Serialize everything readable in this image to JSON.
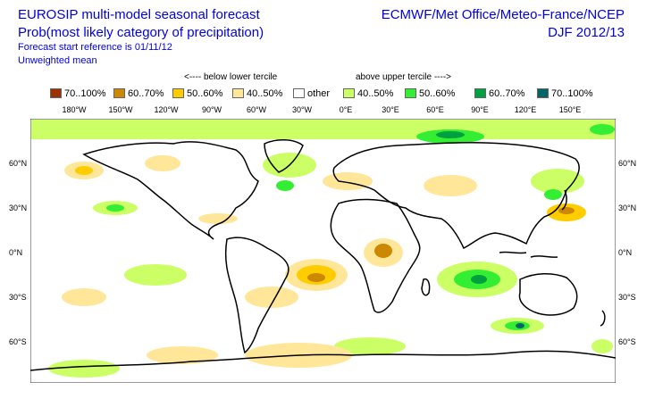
{
  "title": {
    "line1": "EUROSIP multi-model seasonal forecast",
    "line2": "Prob(most likely category of precipitation)",
    "line3": "Forecast start reference is 01/11/12",
    "line4": "Unweighted mean",
    "right1": "ECMWF/Met Office/Meteo-France/NCEP",
    "right2": "DJF 2012/13"
  },
  "legend": {
    "below_label": "<---- below lower tercile",
    "above_label": "above upper tercile ---->",
    "items": [
      {
        "label": "70..100%",
        "color": "#993300"
      },
      {
        "label": "60..70%",
        "color": "#cc8800"
      },
      {
        "label": "50..60%",
        "color": "#ffcc00"
      },
      {
        "label": "40..50%",
        "color": "#ffe699"
      },
      {
        "label": "other",
        "color": "#ffffff"
      },
      {
        "label": "40..50%",
        "color": "#ccff66"
      },
      {
        "label": "50..60%",
        "color": "#33ee33"
      },
      {
        "label": "60..70%",
        "color": "#00a040"
      },
      {
        "label": "70..100%",
        "color": "#006666"
      }
    ]
  },
  "axes": {
    "lon_labels": [
      "180°W",
      "150°W",
      "120°W",
      "90°W",
      "60°W",
      "30°W",
      "0°E",
      "30°E",
      "60°E",
      "90°E",
      "120°E",
      "150°E"
    ],
    "lat_labels": [
      "60°N",
      "30°N",
      "0°N",
      "30°S",
      "60°S"
    ]
  }
}
